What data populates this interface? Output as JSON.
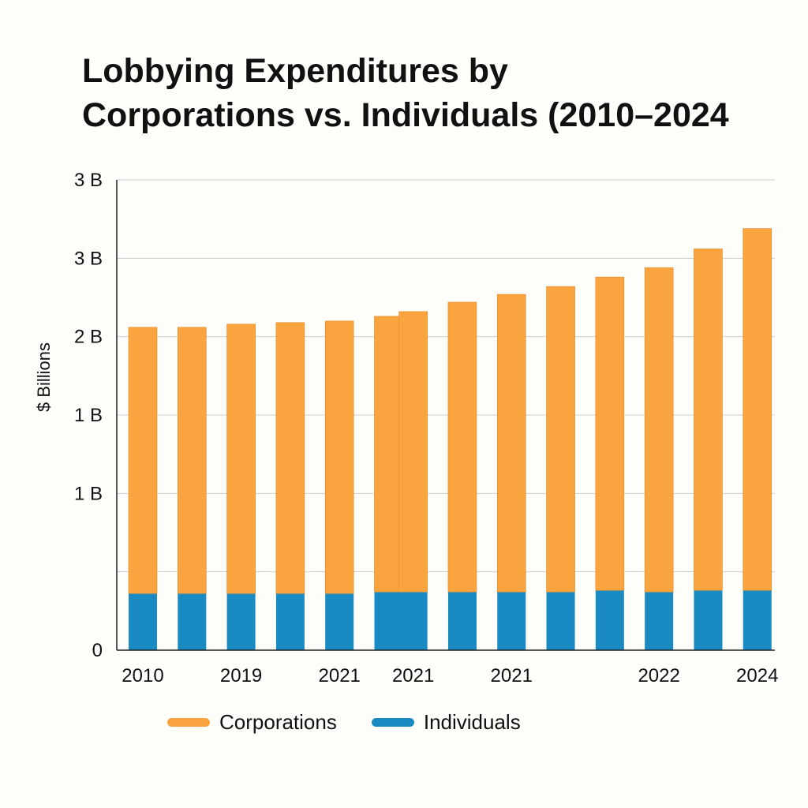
{
  "chart_data": {
    "type": "bar",
    "stacked": true,
    "title_lines": [
      "Lobbying Expenditures by",
      "Corporations vs. Individuals (2010–2024"
    ],
    "xlabel": "",
    "ylabel": "$ Billions",
    "ylim": [
      0,
      3
    ],
    "y_ticks": [
      {
        "value": 0,
        "label": "0"
      },
      {
        "value": 1,
        "label": "1 B"
      },
      {
        "value": 1.5,
        "label": "1 B"
      },
      {
        "value": 2,
        "label": "2 B"
      },
      {
        "value": 2.5,
        "label": "3 B"
      },
      {
        "value": 3,
        "label": "3 B"
      }
    ],
    "gridlines": [
      0.5,
      1,
      1.5,
      2,
      2.5,
      3
    ],
    "grid": true,
    "x_tick_labels": [
      {
        "index": 0,
        "label": "2010"
      },
      {
        "index": 2,
        "label": "2019"
      },
      {
        "index": 4,
        "label": "2021"
      },
      {
        "index": 5.5,
        "label": "2021"
      },
      {
        "index": 7.5,
        "label": "2021"
      },
      {
        "index": 10.5,
        "label": "2022"
      },
      {
        "index": 12.5,
        "label": "2024"
      }
    ],
    "bars": [
      {
        "index": 0,
        "individuals": 0.36,
        "corporations": 1.7
      },
      {
        "index": 1,
        "individuals": 0.36,
        "corporations": 1.7
      },
      {
        "index": 2,
        "individuals": 0.36,
        "corporations": 1.72
      },
      {
        "index": 3,
        "individuals": 0.36,
        "corporations": 1.73
      },
      {
        "index": 4,
        "individuals": 0.36,
        "corporations": 1.74
      },
      {
        "index": 5,
        "individuals": 0.37,
        "corporations": 1.76
      },
      {
        "index": 5.5,
        "individuals": 0.37,
        "corporations": 1.79
      },
      {
        "index": 6.5,
        "individuals": 0.37,
        "corporations": 1.85
      },
      {
        "index": 7.5,
        "individuals": 0.37,
        "corporations": 1.9
      },
      {
        "index": 8.5,
        "individuals": 0.37,
        "corporations": 1.95
      },
      {
        "index": 9.5,
        "individuals": 0.38,
        "corporations": 2.0
      },
      {
        "index": 10.5,
        "individuals": 0.37,
        "corporations": 2.07
      },
      {
        "index": 11.5,
        "individuals": 0.38,
        "corporations": 2.18
      },
      {
        "index": 12.5,
        "individuals": 0.38,
        "corporations": 2.31
      }
    ],
    "series": [
      {
        "name": "Corporations",
        "color": "#f9a43f"
      },
      {
        "name": "Individuals",
        "color": "#1a8bc2"
      }
    ],
    "legend_position": "bottom"
  }
}
